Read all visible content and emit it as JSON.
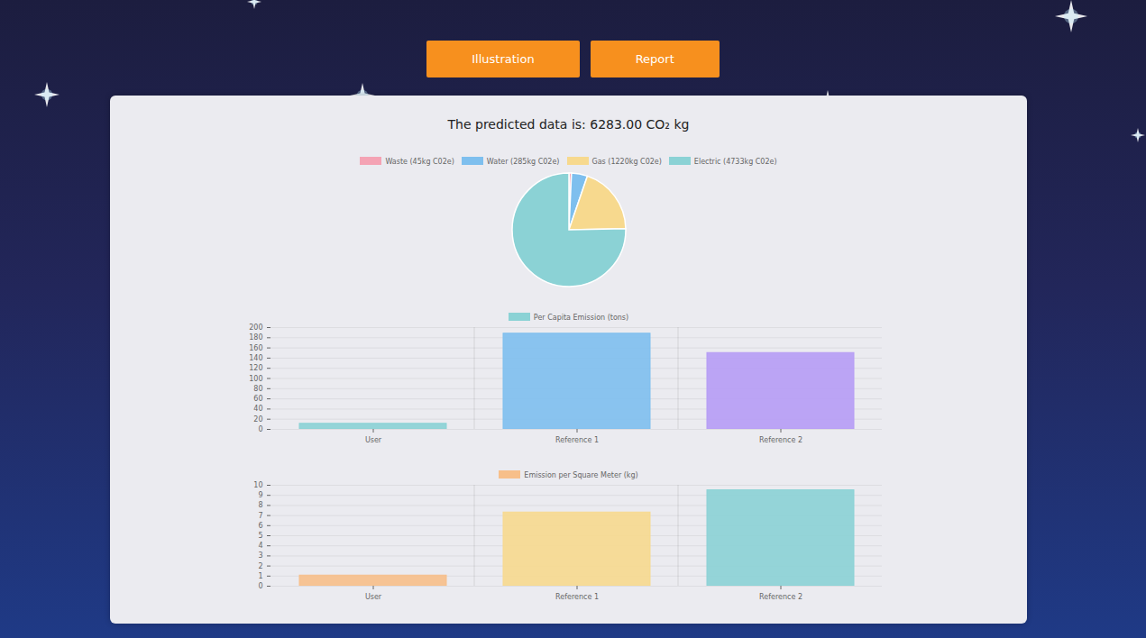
{
  "buttons": [
    "Illustration",
    "Report"
  ],
  "heading": "The predicted data is: 6283.00 CO₂ kg",
  "chart_data": [
    {
      "type": "pie",
      "categories": [
        "Waste (45kg C02e)",
        "Water (285kg C02e)",
        "Gas (1220kg C02e)",
        "Electric (4733kg C02e)"
      ],
      "values": [
        45,
        285,
        1220,
        4733
      ],
      "colors": [
        "#f4a3b4",
        "#7ebfee",
        "#f7d98e",
        "#8bd2d5"
      ],
      "legend": "top"
    },
    {
      "type": "bar",
      "categories": [
        "User",
        "Reference 1",
        "Reference 2"
      ],
      "series": [
        {
          "name": "Per Capita Emission (tons)",
          "color": "#8bd2d5",
          "values": [
            11,
            188,
            150
          ]
        }
      ],
      "colors": [
        "#8bd2d5",
        "#7ebfee",
        "#b69cf5"
      ],
      "ylim": [
        0,
        200
      ],
      "yticks": [
        0,
        20,
        40,
        60,
        80,
        100,
        120,
        140,
        160,
        180,
        200
      ],
      "grid": true,
      "legend": "top"
    },
    {
      "type": "bar",
      "categories": [
        "User",
        "Reference 1",
        "Reference 2"
      ],
      "series": [
        {
          "name": "Emission per Square Meter (kg)",
          "color": "#f7bf8a",
          "values": [
            1.05,
            7.3,
            9.5
          ]
        }
      ],
      "colors": [
        "#f7bf8a",
        "#f7d98e",
        "#8bd2d5"
      ],
      "ylim": [
        0,
        10
      ],
      "yticks": [
        0,
        1,
        2,
        3,
        4,
        5,
        6,
        7,
        8,
        9,
        10
      ],
      "grid": true,
      "legend": "top"
    }
  ]
}
